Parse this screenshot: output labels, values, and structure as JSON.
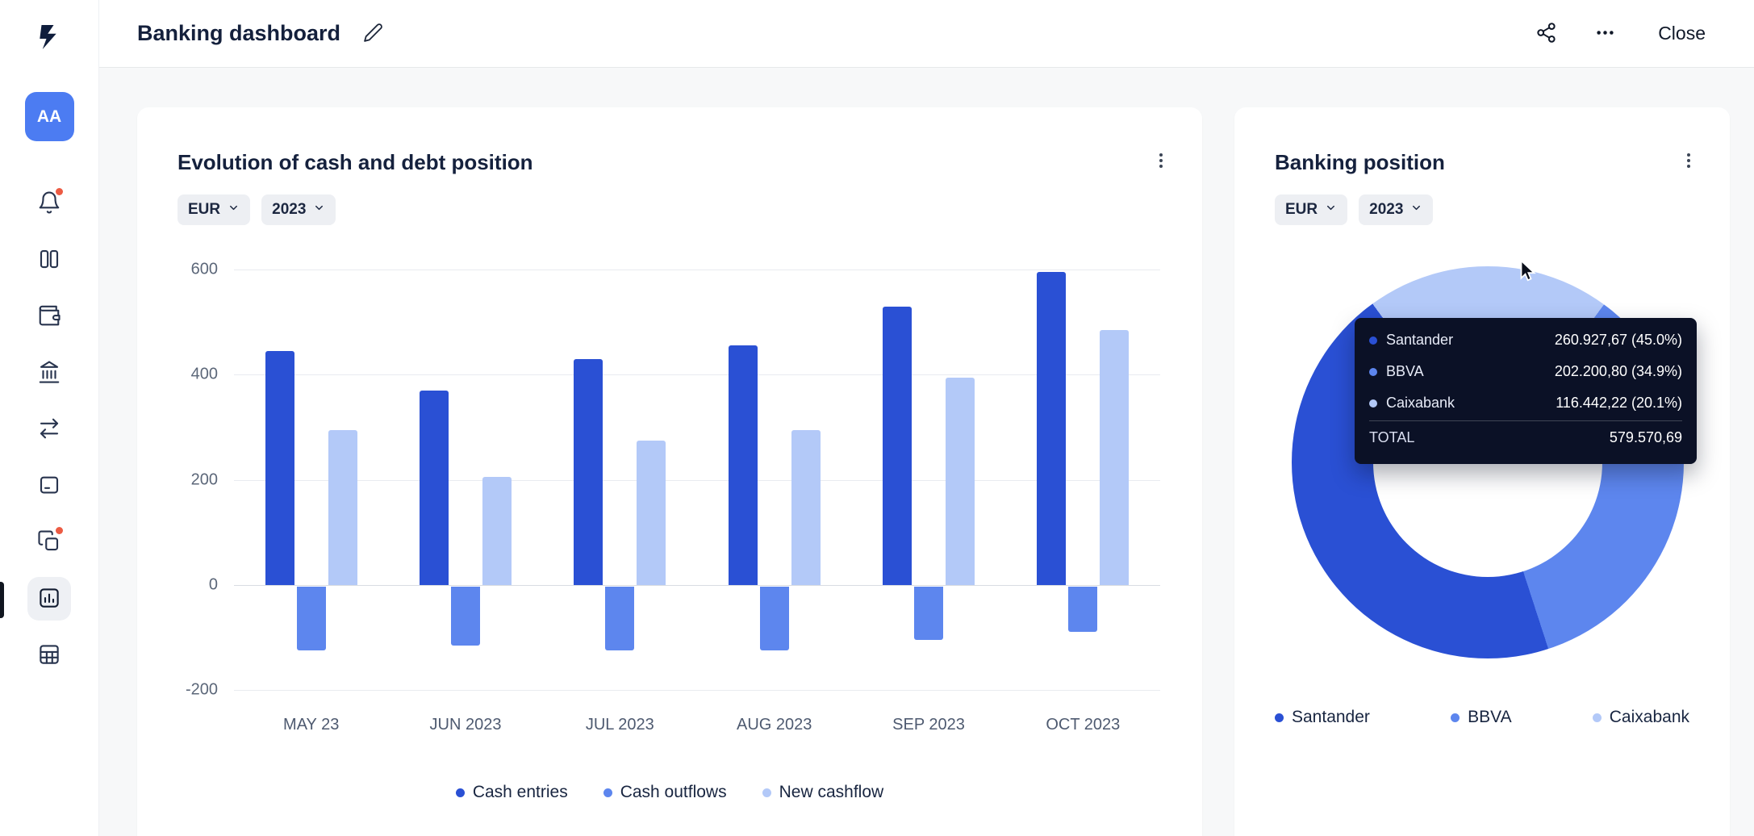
{
  "header": {
    "title": "Banking dashboard",
    "close_label": "Close"
  },
  "sidebar": {
    "avatar_text": "AA",
    "items": [
      {
        "icon": "bell-icon",
        "badge": true
      },
      {
        "icon": "layout-columns-icon"
      },
      {
        "icon": "wallet-icon"
      },
      {
        "icon": "bank-icon"
      },
      {
        "icon": "transfers-icon"
      },
      {
        "icon": "card-icon"
      },
      {
        "icon": "copy-pages-icon",
        "badge": true
      },
      {
        "icon": "bar-chart-icon",
        "selected": true
      },
      {
        "icon": "table-grid-icon"
      }
    ]
  },
  "cards": {
    "cash_debt": {
      "title": "Evolution of cash and debt position",
      "currency_filter": "EUR",
      "year_filter": "2023"
    },
    "banking_position": {
      "title": "Banking position",
      "currency_filter": "EUR",
      "year_filter": "2023",
      "tooltip": {
        "total_label": "TOTAL",
        "total_value": "579.570,69"
      }
    }
  },
  "chart_data": [
    {
      "type": "bar",
      "title": "Evolution of cash and debt position",
      "categories": [
        "MAY 23",
        "JUN 2023",
        "JUL 2023",
        "AUG 2023",
        "SEP 2023",
        "OCT 2023"
      ],
      "series": [
        {
          "name": "Cash entries",
          "color": "#2a50d4",
          "values": [
            445,
            370,
            430,
            455,
            530,
            595
          ]
        },
        {
          "name": "Cash outflows",
          "color": "#5d86ee",
          "values": [
            -125,
            -115,
            -125,
            -125,
            -105,
            -90
          ]
        },
        {
          "name": "New cashflow",
          "color": "#b3c9f8",
          "values": [
            295,
            205,
            275,
            295,
            395,
            485
          ]
        }
      ],
      "ylim": [
        -200,
        600
      ],
      "yticks": [
        600,
        400,
        200,
        0,
        -200
      ],
      "grid": true,
      "legend_position": "bottom"
    },
    {
      "type": "donut",
      "title": "Banking position",
      "rotation": 324,
      "segments": [
        {
          "label": "Santander",
          "value": 260927.67,
          "value_display": "260.927,67",
          "pct": 45.0,
          "pct_display": "45.0",
          "color": "#2a50d4"
        },
        {
          "label": "BBVA",
          "value": 202200.8,
          "value_display": "202.200,80",
          "pct": 34.9,
          "pct_display": "34.9",
          "color": "#5d86ee"
        },
        {
          "label": "Caixabank",
          "value": 116442.22,
          "value_display": "116.442,22",
          "pct": 20.1,
          "pct_display": "20.1",
          "color": "#b3c9f8"
        }
      ],
      "total": 579570.69,
      "total_display": "579.570,69",
      "legend_position": "bottom"
    }
  ]
}
